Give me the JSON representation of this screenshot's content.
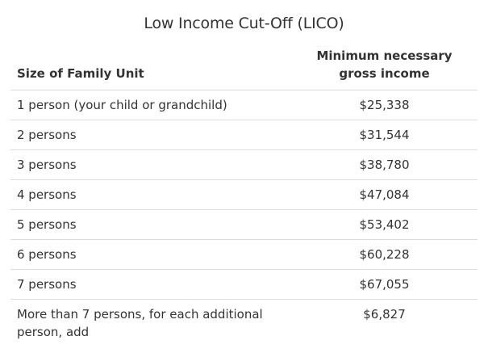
{
  "table": {
    "caption": "Low Income Cut-Off (LICO)",
    "headers": {
      "size": "Size of Family Unit",
      "income": "Minimum necessary gross income"
    },
    "rows": [
      {
        "size": "1 person (your child or grandchild)",
        "income": "$25,338"
      },
      {
        "size": "2 persons",
        "income": "$31,544"
      },
      {
        "size": "3 persons",
        "income": "$38,780"
      },
      {
        "size": "4 persons",
        "income": "$47,084"
      },
      {
        "size": "5 persons",
        "income": "$53,402"
      },
      {
        "size": "6 persons",
        "income": "$60,228"
      },
      {
        "size": "7 persons",
        "income": "$67,055"
      },
      {
        "size": "More than 7 persons, for each additional person, add",
        "income": "$6,827"
      }
    ]
  }
}
